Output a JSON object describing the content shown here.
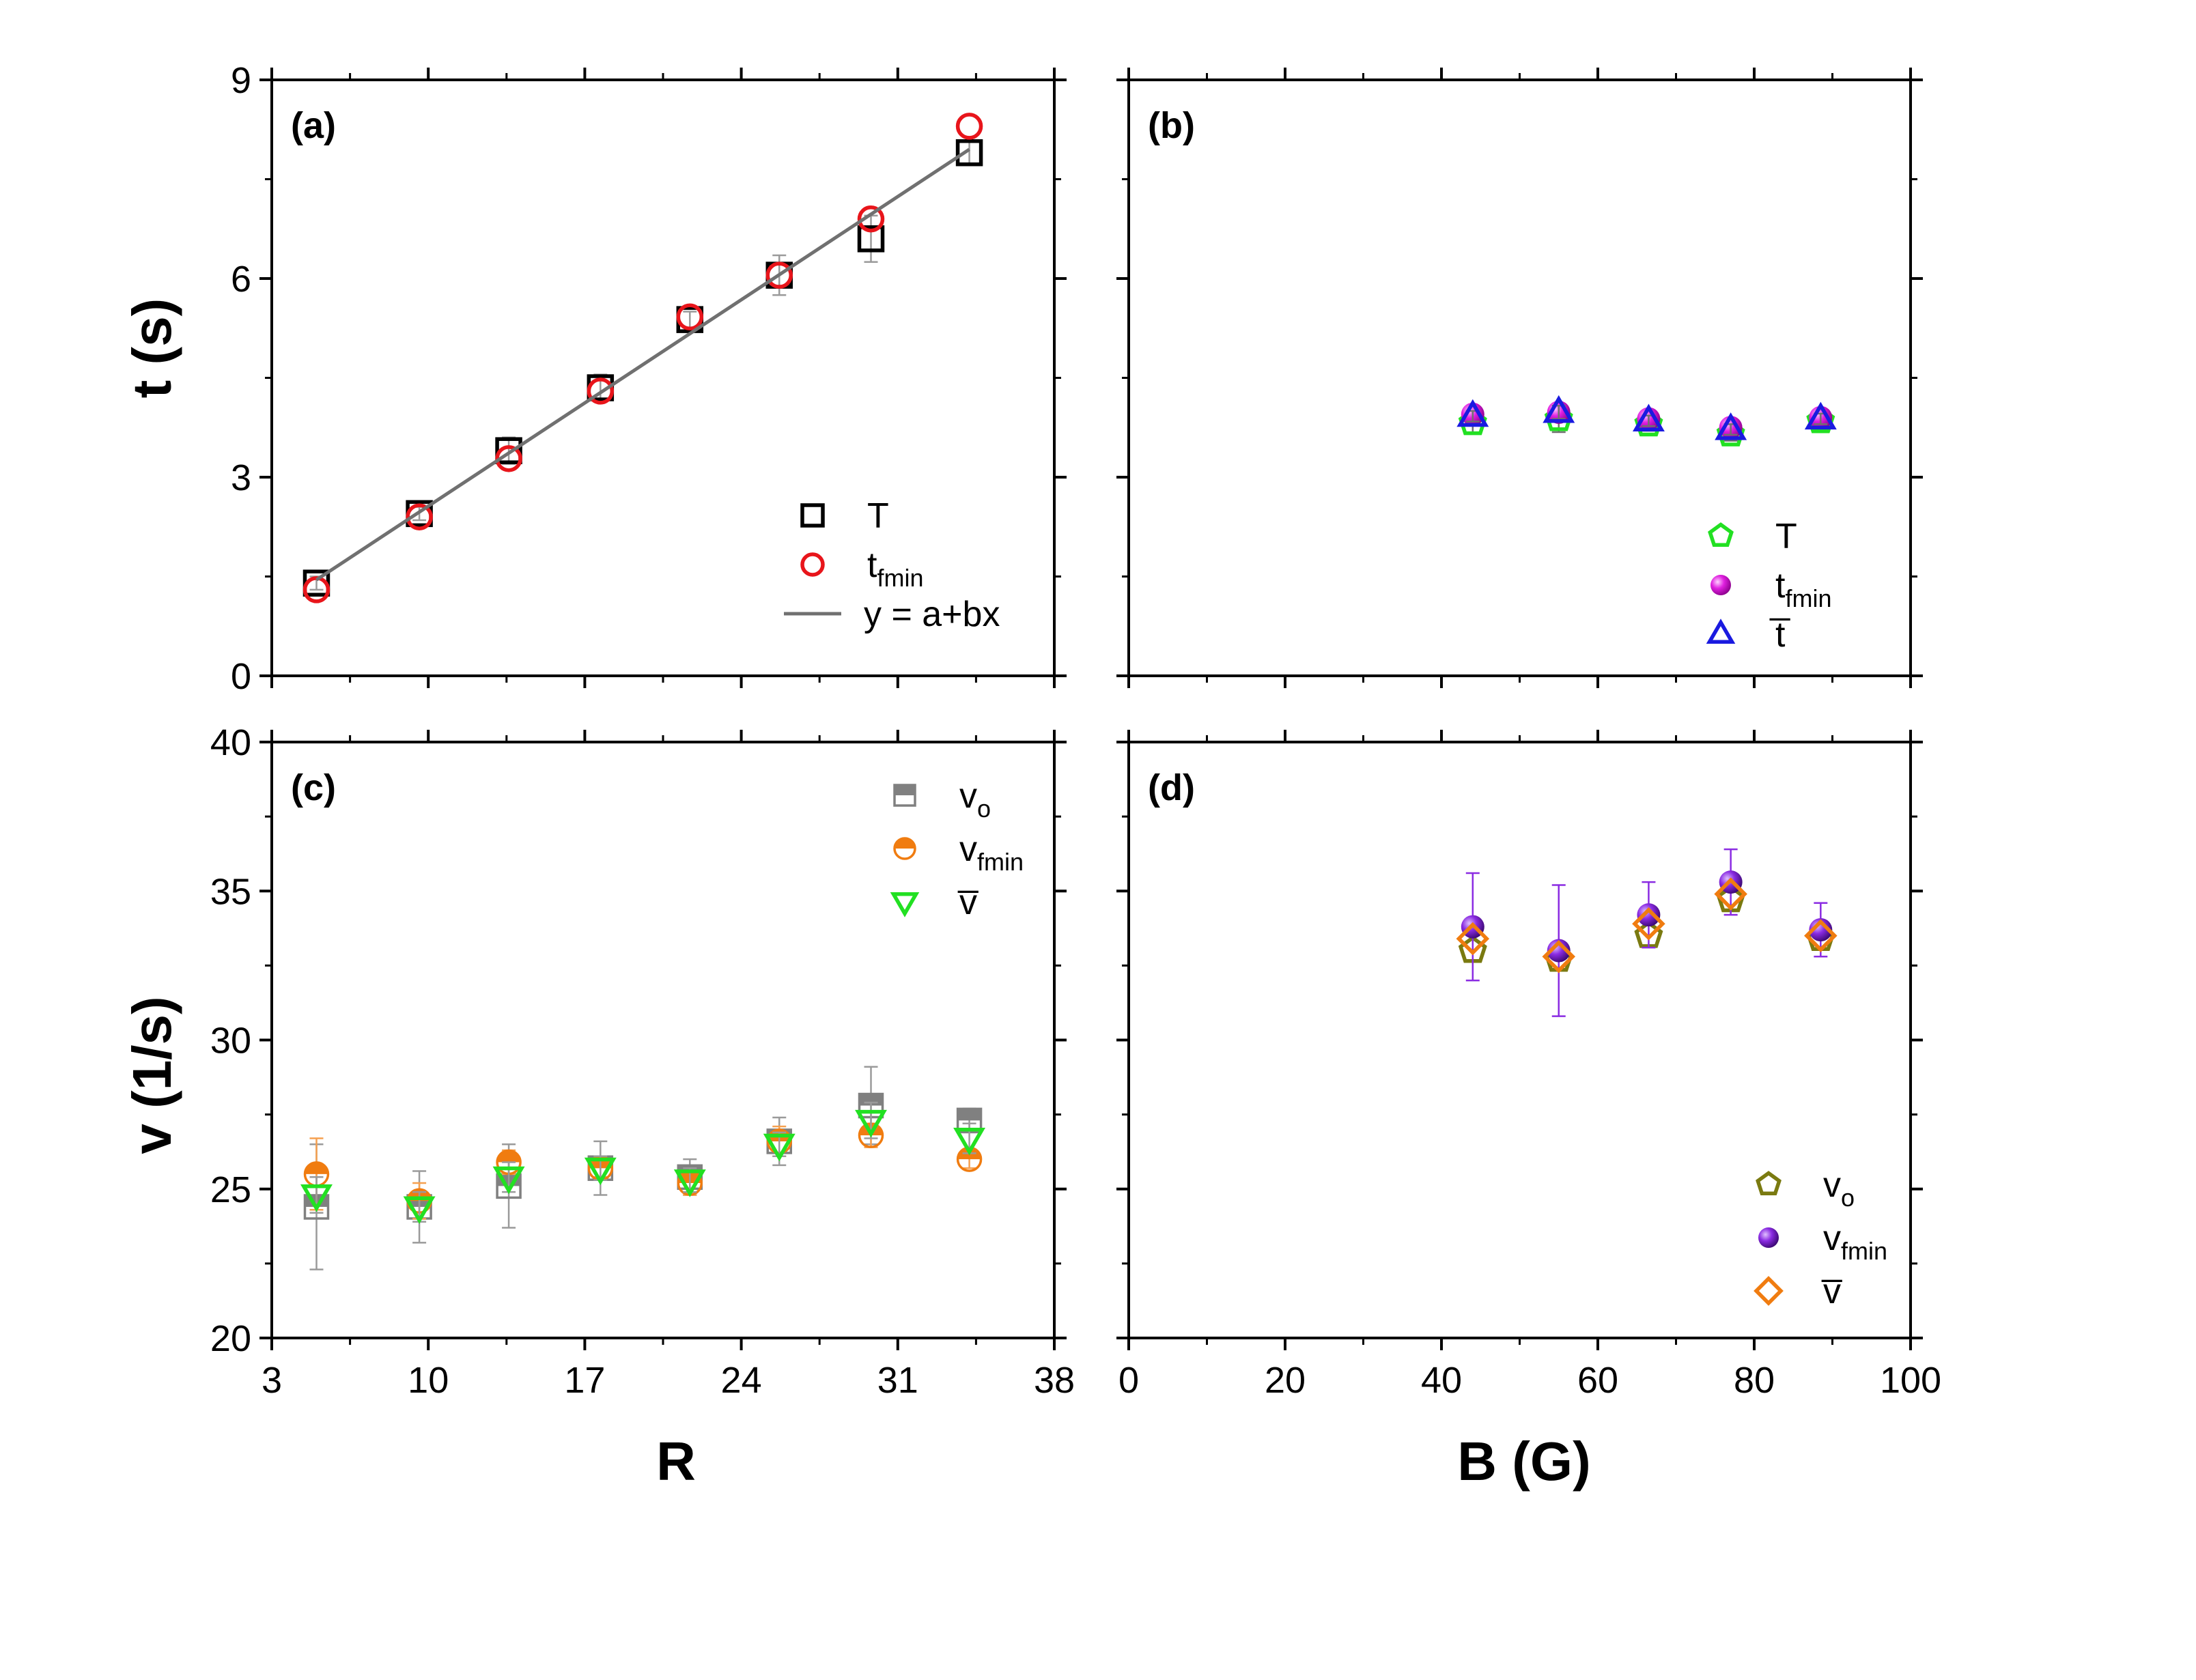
{
  "figure": {
    "y_title_top": "t (s)",
    "y_title_bottom": "v (1/s)",
    "x_title_left": "R",
    "x_title_right": "B (G)"
  },
  "chart_data": [
    {
      "id": "a",
      "type": "scatter",
      "panel_label": "(a)",
      "xlabel": "",
      "ylabel": "t (s)",
      "xlim": [
        3,
        38
      ],
      "ylim": [
        0,
        9
      ],
      "xticks": [],
      "yticks": [
        0,
        3,
        6,
        9
      ],
      "series": [
        {
          "name": "T",
          "sub": "",
          "marker": "square-open",
          "color": "#000000",
          "x": [
            5,
            9.6,
            13.6,
            17.7,
            21.7,
            25.7,
            29.8,
            34.2
          ],
          "y": [
            1.4,
            2.45,
            3.4,
            4.35,
            5.38,
            6.05,
            6.6,
            7.9
          ],
          "err": [
            0.1,
            0.1,
            0.2,
            0.2,
            0.12,
            0.3,
            0.35,
            0.18
          ]
        },
        {
          "name": "t",
          "sub": "fmin",
          "marker": "circle-open",
          "color": "#e8151b",
          "x": [
            5,
            9.6,
            13.6,
            17.7,
            21.7,
            25.7,
            29.8,
            34.2
          ],
          "y": [
            1.3,
            2.4,
            3.28,
            4.3,
            5.42,
            6.05,
            6.9,
            8.3
          ],
          "err": []
        },
        {
          "name": "y = a+bx",
          "sub": "",
          "marker": "line",
          "color": "#707070",
          "x": [
            5,
            34.2
          ],
          "y": [
            1.45,
            7.95
          ],
          "err": []
        }
      ]
    },
    {
      "id": "b",
      "type": "scatter",
      "panel_label": "(b)",
      "xlabel": "",
      "ylabel": "",
      "xlim": [
        0,
        100
      ],
      "ylim": [
        0,
        9
      ],
      "xticks": [],
      "yticks": [],
      "series": [
        {
          "name": "T",
          "sub": "",
          "marker": "pentagon-open",
          "color": "#22e022",
          "x": [
            44,
            55,
            66.5,
            77,
            88.5
          ],
          "y": [
            3.82,
            3.88,
            3.8,
            3.65,
            3.85
          ],
          "err": [
            0.15,
            0.2,
            0.1,
            0.1,
            0.08
          ]
        },
        {
          "name": "t",
          "sub": "fmin",
          "marker": "sphere",
          "color": "#e020e0",
          "x": [
            44,
            55,
            66.5,
            77,
            88.5
          ],
          "y": [
            3.95,
            3.98,
            3.88,
            3.75,
            3.9
          ],
          "err": []
        },
        {
          "name": "t̅",
          "sub": "",
          "marker": "triangle-open",
          "color": "#1a1ae0",
          "x": [
            44,
            55,
            66.5,
            77,
            88.5
          ],
          "y": [
            3.92,
            3.98,
            3.85,
            3.72,
            3.88
          ],
          "err": [
            0.08,
            0.1,
            0.08,
            0.08,
            0.08
          ]
        }
      ]
    },
    {
      "id": "c",
      "type": "scatter",
      "panel_label": "(c)",
      "xlabel": "R",
      "ylabel": "v (1/s)",
      "xlim": [
        3,
        38
      ],
      "ylim": [
        20,
        40
      ],
      "xticks": [
        3,
        10,
        17,
        24,
        31,
        38
      ],
      "yticks": [
        20,
        25,
        30,
        35,
        40
      ],
      "series": [
        {
          "name": "v",
          "sub": "o",
          "marker": "square-half",
          "color": "#808080",
          "x": [
            5,
            9.6,
            13.6,
            17.7,
            21.7,
            25.7,
            29.8,
            34.2
          ],
          "y": [
            24.4,
            24.4,
            25.1,
            25.7,
            25.4,
            26.6,
            27.8,
            27.3
          ],
          "err": [
            2.1,
            1.2,
            1.4,
            0.9,
            0.6,
            0.8,
            1.3,
            0.4
          ]
        },
        {
          "name": "v",
          "sub": "fmin",
          "marker": "circle-half",
          "color": "#f07c10",
          "x": [
            5,
            9.6,
            13.6,
            17.7,
            21.7,
            25.7,
            29.8,
            34.2
          ],
          "y": [
            25.5,
            24.6,
            25.9,
            25.7,
            25.2,
            26.6,
            26.8,
            26.0
          ],
          "err": [
            1.2,
            0.6,
            0.4,
            0.3,
            0.4,
            0.5,
            0.4,
            0.3
          ]
        },
        {
          "name": "v̅",
          "sub": "",
          "marker": "triangle-down-open",
          "color": "#22e022",
          "x": [
            5,
            9.6,
            13.6,
            17.7,
            21.7,
            25.7,
            29.8,
            34.2
          ],
          "y": [
            24.8,
            24.4,
            25.4,
            25.7,
            25.3,
            26.5,
            27.3,
            26.7
          ],
          "err": [
            0.6,
            0.5,
            0.5,
            0.4,
            0.4,
            0.4,
            0.6,
            0.5
          ]
        }
      ]
    },
    {
      "id": "d",
      "type": "scatter",
      "panel_label": "(d)",
      "xlabel": "B (G)",
      "ylabel": "",
      "xlim": [
        0,
        100
      ],
      "ylim": [
        20,
        40
      ],
      "xticks": [
        0,
        20,
        40,
        60,
        80,
        100
      ],
      "yticks": [],
      "series": [
        {
          "name": "v",
          "sub": "o",
          "marker": "pentagon-open",
          "color": "#7a7a10",
          "x": [
            44,
            55,
            66.5,
            77,
            88.5
          ],
          "y": [
            33.0,
            32.7,
            33.5,
            34.7,
            33.4
          ],
          "err": []
        },
        {
          "name": "v",
          "sub": "fmin",
          "marker": "sphere",
          "color": "#8a2be2",
          "x": [
            44,
            55,
            66.5,
            77,
            88.5
          ],
          "y": [
            33.8,
            33.0,
            34.2,
            35.3,
            33.7
          ],
          "err": [
            1.8,
            2.2,
            1.1,
            1.1,
            0.9
          ]
        },
        {
          "name": "v̅",
          "sub": "",
          "marker": "diamond-open",
          "color": "#f07c10",
          "x": [
            44,
            55,
            66.5,
            77,
            88.5
          ],
          "y": [
            33.4,
            32.8,
            33.9,
            34.9,
            33.5
          ],
          "err": []
        }
      ]
    }
  ]
}
